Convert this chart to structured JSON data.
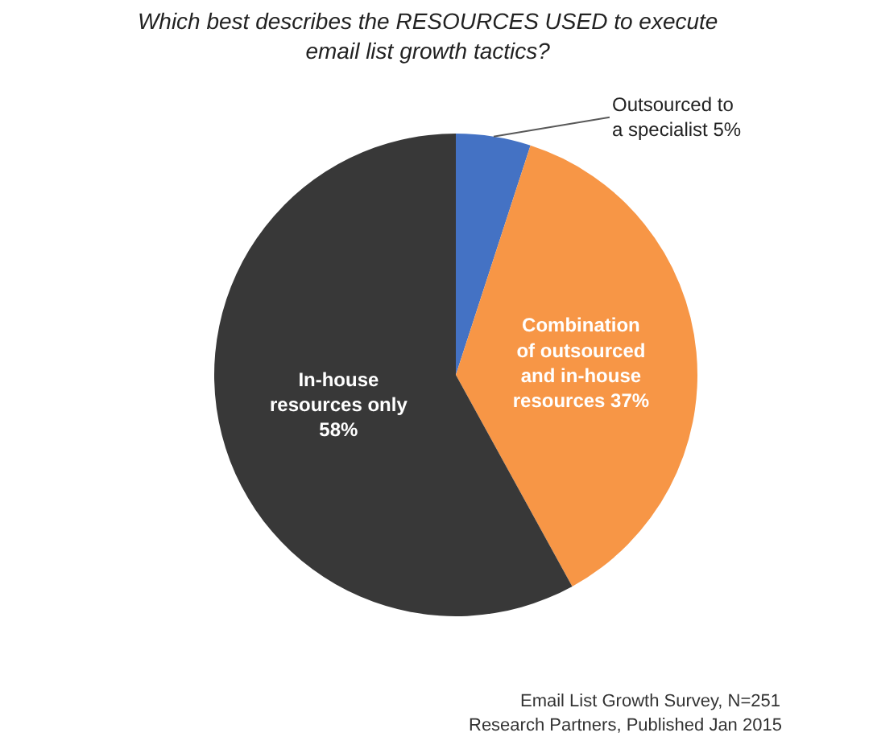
{
  "chart_data": {
    "type": "pie",
    "title": "Which best describes the RESOURCES USED to execute email list growth tactics?",
    "categories": [
      "Outsourced to a specialist",
      "Combination of outsourced and in-house resources",
      "In-house resources only"
    ],
    "values": [
      5,
      37,
      58
    ],
    "value_labels": [
      "5%",
      "37%",
      "58%"
    ],
    "colors": [
      "#4472c4",
      "#f79646",
      "#383838"
    ],
    "annotations": [
      "Email List Growth Survey, N=251",
      "Research Partners, Published Jan 2015"
    ]
  }
}
